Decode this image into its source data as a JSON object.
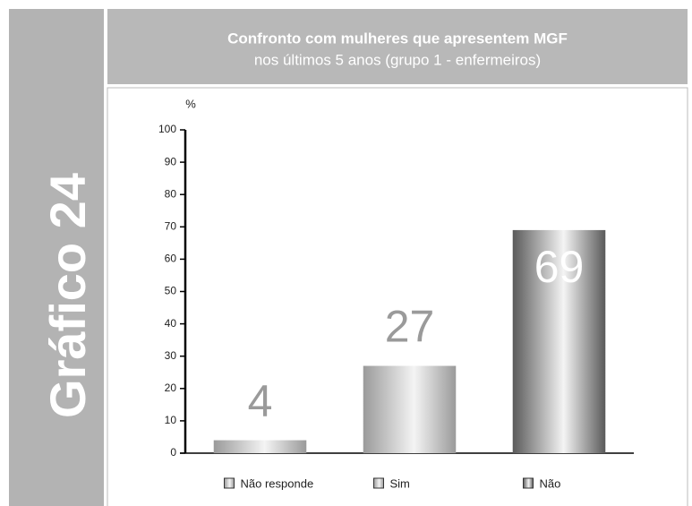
{
  "chart_data": {
    "type": "bar",
    "side_label": "Gráfico 24",
    "title": [
      "Confronto com mulheres que apresentem MGF",
      "nos últimos 5 anos  (grupo 1 - enfermeiros)"
    ],
    "y_label": "%",
    "categories": [
      "Não responde",
      "Sim",
      "Não"
    ],
    "values": [
      4,
      27,
      69
    ],
    "colors": [
      "#9a9a9a",
      "#9a9a9a",
      "#5a5a5a"
    ],
    "label_colors": [
      "#9a9a9a",
      "#9a9a9a",
      "#ffffff"
    ],
    "ylim": [
      0,
      100
    ],
    "yticks": [
      0,
      10,
      20,
      30,
      40,
      50,
      60,
      70,
      80,
      90,
      100
    ]
  }
}
